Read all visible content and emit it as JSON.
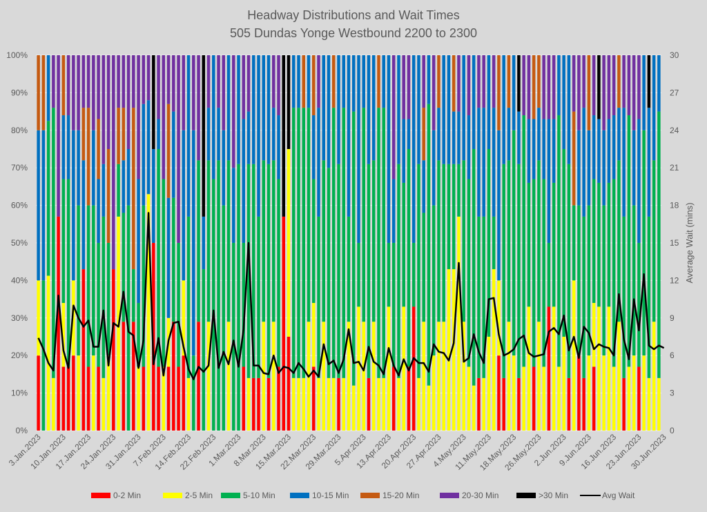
{
  "chart_data": {
    "type": "bar",
    "subtype": "stacked-100-percent-with-line",
    "title": "Headway Distributions and Wait Times",
    "subtitle": "505 Dundas  Yonge Westbound 2200 to 2300",
    "xlabel": "",
    "ylabel": "",
    "y2label": "Average Wait (mins)",
    "ylim": [
      0,
      100
    ],
    "y2lim": [
      0,
      30
    ],
    "yticks": [
      "0%",
      "10%",
      "20%",
      "30%",
      "40%",
      "50%",
      "60%",
      "70%",
      "80%",
      "90%",
      "100%"
    ],
    "y2ticks": [
      "0",
      "3",
      "6",
      "9",
      "12",
      "15",
      "18",
      "21",
      "24",
      "27",
      "30"
    ],
    "grid": true,
    "legend_position": "bottom",
    "xtick_labels": [
      "3.Jan.2023",
      "10.Jan.2023",
      "17.Jan.2023",
      "24.Jan.2023",
      "31.Jan.2023",
      "7.Feb.2023",
      "14.Feb.2023",
      "22.Feb.2023",
      "1.Mar.2023",
      "8.Mar.2023",
      "15.Mar.2023",
      "22.Mar.2023",
      "29.Mar.2023",
      "5.Apr.2023",
      "13.Apr.2023",
      "20.Apr.2023",
      "27.Apr.2023",
      "4.May.2023",
      "11.May.2023",
      "18.May.2023",
      "26.May.2023",
      "2.Jun.2023",
      "9.Jun.2023",
      "16.Jun.2023",
      "23.Jun.2023",
      "30.Jun.2023"
    ],
    "series_names": [
      "0-2 Min",
      "2-5 Min",
      "5-10 Min",
      "10-15 Min",
      "15-20 Min",
      "20-30 Min",
      ">30 Min"
    ],
    "series_colors": [
      "#ff0000",
      "#ffff00",
      "#00b050",
      "#0070c0",
      "#c55a11",
      "#7030a0",
      "#000000"
    ],
    "line_series": {
      "name": "Avg Wait",
      "color": "#000000"
    },
    "bars": [
      [
        20,
        20,
        0,
        40,
        20,
        0,
        0
      ],
      [
        0,
        0,
        40,
        40,
        20,
        0,
        0
      ],
      [
        0,
        33,
        33,
        14,
        0,
        0,
        0
      ],
      [
        0,
        14,
        72,
        0,
        0,
        14,
        0
      ],
      [
        57,
        0,
        0,
        0,
        0,
        43,
        0
      ],
      [
        17,
        17,
        33,
        17,
        16,
        0,
        0
      ],
      [
        17,
        0,
        50,
        17,
        0,
        16,
        0
      ],
      [
        20,
        20,
        0,
        40,
        0,
        20,
        0
      ],
      [
        0,
        20,
        40,
        20,
        0,
        20,
        0
      ],
      [
        43,
        0,
        0,
        29,
        14,
        14,
        0
      ],
      [
        17,
        0,
        43,
        0,
        26,
        14,
        0
      ],
      [
        0,
        20,
        40,
        20,
        0,
        20,
        0
      ],
      [
        17,
        0,
        33,
        17,
        16,
        17,
        0
      ],
      [
        0,
        14,
        43,
        14,
        0,
        29,
        0
      ],
      [
        0,
        20,
        30,
        0,
        25,
        25,
        0
      ],
      [
        43,
        0,
        0,
        0,
        0,
        57,
        0
      ],
      [
        0,
        57,
        14,
        0,
        15,
        14,
        0
      ],
      [
        29,
        0,
        29,
        14,
        14,
        14,
        0
      ],
      [
        0,
        0,
        60,
        15,
        0,
        25,
        0
      ],
      [
        29,
        0,
        14,
        0,
        43,
        14,
        0
      ],
      [
        0,
        17,
        17,
        33,
        0,
        33,
        0
      ],
      [
        17,
        0,
        43,
        27,
        0,
        13,
        0
      ],
      [
        0,
        63,
        0,
        25,
        0,
        12,
        0
      ],
      [
        50,
        0,
        0,
        25,
        0,
        0,
        25
      ],
      [
        17,
        0,
        58,
        8,
        0,
        17,
        0
      ],
      [
        0,
        17,
        50,
        0,
        0,
        33,
        0
      ],
      [
        17,
        13,
        0,
        32,
        25,
        13,
        0
      ],
      [
        29,
        0,
        33,
        23,
        0,
        15,
        0
      ],
      [
        17,
        0,
        33,
        0,
        0,
        50,
        0
      ],
      [
        20,
        20,
        0,
        40,
        0,
        20,
        0
      ],
      [
        0,
        14,
        43,
        43,
        0,
        0,
        0
      ],
      [
        0,
        0,
        20,
        60,
        0,
        20,
        0
      ],
      [
        29,
        0,
        43,
        0,
        0,
        28,
        0
      ],
      [
        0,
        0,
        43,
        14,
        0,
        0,
        43
      ],
      [
        0,
        29,
        43,
        14,
        0,
        14,
        0
      ],
      [
        0,
        0,
        67,
        33,
        0,
        0,
        0
      ],
      [
        0,
        0,
        72,
        14,
        0,
        14,
        0
      ],
      [
        0,
        0,
        60,
        20,
        0,
        20,
        0
      ],
      [
        0,
        29,
        43,
        28,
        0,
        0,
        0
      ],
      [
        0,
        0,
        50,
        20,
        0,
        30,
        0
      ],
      [
        0,
        0,
        71,
        29,
        0,
        0,
        0
      ],
      [
        17,
        0,
        33,
        33,
        0,
        17,
        0
      ],
      [
        0,
        14,
        57,
        14,
        0,
        15,
        0
      ],
      [
        14,
        0,
        57,
        29,
        0,
        0,
        0
      ],
      [
        14,
        0,
        43,
        43,
        0,
        0,
        0
      ],
      [
        0,
        29,
        43,
        28,
        0,
        0,
        0
      ],
      [
        14,
        0,
        57,
        29,
        0,
        0,
        0
      ],
      [
        0,
        29,
        43,
        14,
        0,
        14,
        0
      ],
      [
        17,
        0,
        50,
        17,
        0,
        16,
        0
      ],
      [
        57,
        0,
        0,
        0,
        0,
        0,
        43
      ],
      [
        25,
        50,
        0,
        0,
        0,
        0,
        25
      ],
      [
        0,
        14,
        72,
        14,
        0,
        0,
        0
      ],
      [
        0,
        14,
        72,
        14,
        0,
        0,
        0
      ],
      [
        0,
        14,
        72,
        0,
        14,
        0,
        0
      ],
      [
        0,
        29,
        57,
        14,
        0,
        0,
        0
      ],
      [
        17,
        17,
        33,
        17,
        16,
        0,
        0
      ],
      [
        0,
        14,
        43,
        29,
        0,
        14,
        0
      ],
      [
        0,
        29,
        43,
        28,
        0,
        0,
        0
      ],
      [
        0,
        14,
        56,
        30,
        0,
        0,
        0
      ],
      [
        0,
        14,
        72,
        0,
        14,
        0,
        0
      ],
      [
        14,
        0,
        57,
        29,
        0,
        0,
        0
      ],
      [
        0,
        14,
        72,
        14,
        0,
        0,
        0
      ],
      [
        0,
        29,
        28,
        43,
        0,
        0,
        0
      ],
      [
        0,
        12,
        73,
        15,
        0,
        0,
        0
      ],
      [
        0,
        33,
        17,
        50,
        0,
        0,
        0
      ],
      [
        0,
        29,
        57,
        14,
        0,
        0,
        0
      ],
      [
        14,
        0,
        57,
        29,
        0,
        0,
        0
      ],
      [
        0,
        29,
        43,
        28,
        0,
        0,
        0
      ],
      [
        0,
        14,
        72,
        0,
        14,
        0,
        0
      ],
      [
        0,
        14,
        72,
        14,
        0,
        0,
        0
      ],
      [
        0,
        33,
        17,
        50,
        0,
        0,
        0
      ],
      [
        17,
        0,
        33,
        17,
        0,
        33,
        0
      ],
      [
        0,
        14,
        57,
        29,
        0,
        0,
        0
      ],
      [
        0,
        33,
        33,
        17,
        0,
        17,
        0
      ],
      [
        17,
        0,
        58,
        8,
        0,
        17,
        0
      ],
      [
        33,
        0,
        17,
        50,
        0,
        0,
        0
      ],
      [
        0,
        14,
        57,
        29,
        0,
        0,
        0
      ],
      [
        0,
        29,
        29,
        14,
        14,
        14,
        0
      ],
      [
        0,
        12,
        75,
        13,
        0,
        0,
        0
      ],
      [
        0,
        20,
        40,
        20,
        0,
        20,
        0
      ],
      [
        0,
        29,
        43,
        14,
        14,
        0,
        0
      ],
      [
        0,
        29,
        42,
        29,
        0,
        0,
        0
      ],
      [
        0,
        43,
        28,
        29,
        0,
        0,
        0
      ],
      [
        0,
        43,
        28,
        14,
        15,
        0,
        0
      ],
      [
        0,
        57,
        14,
        14,
        0,
        15,
        0
      ],
      [
        0,
        29,
        43,
        28,
        0,
        0,
        0
      ],
      [
        0,
        17,
        50,
        17,
        0,
        16,
        0
      ],
      [
        0,
        12,
        63,
        25,
        0,
        0,
        0
      ],
      [
        14,
        0,
        43,
        29,
        0,
        14,
        0
      ],
      [
        0,
        14,
        43,
        29,
        0,
        14,
        0
      ],
      [
        0,
        25,
        50,
        25,
        0,
        0,
        0
      ],
      [
        0,
        43,
        14,
        29,
        0,
        14,
        0
      ],
      [
        20,
        20,
        0,
        40,
        20,
        0,
        0
      ],
      [
        14,
        0,
        57,
        29,
        0,
        0,
        0
      ],
      [
        0,
        29,
        43,
        14,
        14,
        0,
        0
      ],
      [
        0,
        20,
        60,
        20,
        0,
        0,
        0
      ],
      [
        14,
        0,
        57,
        14,
        0,
        0,
        15
      ],
      [
        0,
        17,
        67,
        0,
        0,
        16,
        0
      ],
      [
        0,
        33,
        33,
        17,
        0,
        17,
        0
      ],
      [
        17,
        0,
        50,
        16,
        17,
        0,
        0
      ],
      [
        0,
        29,
        43,
        14,
        14,
        0,
        0
      ],
      [
        0,
        17,
        50,
        16,
        0,
        17,
        0
      ],
      [
        33,
        0,
        17,
        33,
        0,
        17,
        0
      ],
      [
        0,
        33,
        33,
        17,
        0,
        17,
        0
      ],
      [
        0,
        17,
        67,
        16,
        0,
        0,
        0
      ],
      [
        0,
        25,
        50,
        25,
        0,
        0,
        0
      ],
      [
        14,
        0,
        57,
        29,
        0,
        0,
        0
      ],
      [
        0,
        40,
        20,
        0,
        25,
        15,
        0
      ],
      [
        20,
        0,
        40,
        20,
        0,
        20,
        0
      ],
      [
        14,
        0,
        43,
        29,
        0,
        14,
        0
      ],
      [
        0,
        20,
        40,
        20,
        20,
        0,
        0
      ],
      [
        17,
        17,
        33,
        17,
        0,
        16,
        0
      ],
      [
        0,
        33,
        33,
        17,
        0,
        0,
        17
      ],
      [
        0,
        20,
        40,
        20,
        0,
        20,
        0
      ],
      [
        0,
        33,
        33,
        17,
        0,
        17,
        0
      ],
      [
        0,
        17,
        50,
        17,
        0,
        16,
        0
      ],
      [
        0,
        29,
        43,
        14,
        14,
        0,
        0
      ],
      [
        14,
        0,
        43,
        29,
        0,
        14,
        0
      ],
      [
        0,
        17,
        67,
        0,
        0,
        16,
        0
      ],
      [
        0,
        20,
        40,
        20,
        0,
        20,
        0
      ],
      [
        17,
        0,
        33,
        33,
        0,
        17,
        0
      ],
      [
        0,
        20,
        60,
        20,
        0,
        0,
        0
      ],
      [
        0,
        14,
        43,
        29,
        0,
        0,
        14
      ],
      [
        0,
        29,
        43,
        28,
        0,
        0,
        0
      ],
      [
        0,
        14,
        71,
        15,
        0,
        0,
        0
      ]
    ],
    "avg_wait": [
      7.4,
      6.5,
      5.4,
      4.8,
      10.8,
      6.4,
      5.0,
      10.0,
      9.0,
      8.3,
      8.8,
      6.7,
      6.7,
      9.6,
      5.2,
      8.6,
      8.3,
      11.1,
      7.9,
      7.6,
      5.0,
      7.2,
      17.4,
      5.3,
      7.4,
      4.4,
      7.2,
      8.6,
      8.7,
      6.7,
      4.9,
      4.1,
      5.1,
      4.7,
      5.2,
      9.6,
      5.0,
      6.3,
      5.3,
      7.2,
      5.1,
      8.1,
      15.0,
      5.2,
      5.2,
      4.6,
      4.5,
      6.0,
      4.6,
      5.1,
      5.0,
      4.6,
      5.4,
      4.9,
      4.3,
      4.8,
      4.3,
      6.9,
      5.3,
      5.6,
      4.6,
      5.7,
      8.1,
      5.4,
      5.5,
      4.8,
      6.7,
      5.5,
      5.2,
      4.5,
      6.6,
      5.2,
      4.4,
      5.7,
      4.8,
      5.8,
      5.4,
      5.4,
      4.7,
      6.9,
      6.3,
      6.2,
      5.6,
      7.0,
      13.4,
      5.5,
      5.8,
      7.7,
      6.3,
      5.4,
      10.5,
      10.6,
      7.7,
      6.0,
      6.2,
      6.5,
      7.3,
      7.6,
      6.2,
      5.9,
      6.0,
      6.1,
      7.9,
      8.2,
      7.7,
      9.2,
      6.4,
      7.5,
      5.8,
      8.3,
      7.8,
      6.5,
      6.9,
      6.7,
      6.6,
      6.0,
      10.9,
      7.3,
      5.7,
      10.5,
      8.0,
      12.5,
      6.8,
      6.5,
      6.8,
      6.6
    ]
  },
  "legend": [
    {
      "label": "0-2 Min",
      "kind": "bar"
    },
    {
      "label": "2-5 Min",
      "kind": "bar"
    },
    {
      "label": "5-10 Min",
      "kind": "bar"
    },
    {
      "label": "10-15 Min",
      "kind": "bar"
    },
    {
      "label": "15-20 Min",
      "kind": "bar"
    },
    {
      "label": "20-30 Min",
      "kind": "bar"
    },
    {
      "label": ">30 Min",
      "kind": "bar"
    },
    {
      "label": "Avg Wait",
      "kind": "line"
    }
  ]
}
